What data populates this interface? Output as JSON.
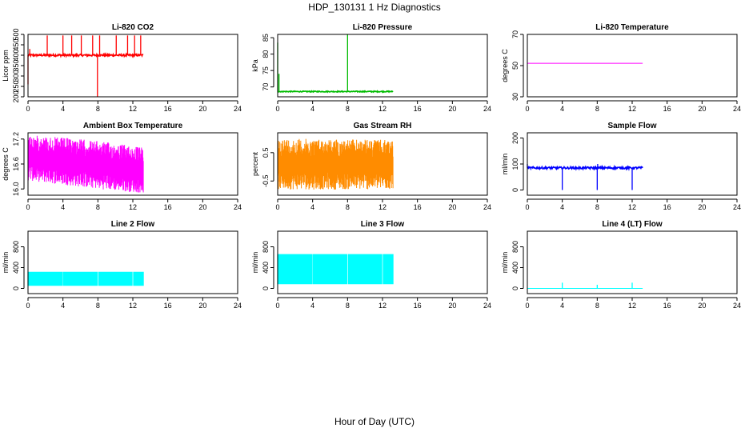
{
  "figure": {
    "title": "HDP_130131  1 Hz Diagnostics",
    "xlabel": "Hour of Day (UTC)"
  },
  "chart_data": [
    {
      "type": "line",
      "title": "Li-820 CO2",
      "ylabel": "Licor ppm",
      "color": "#ff0000",
      "xlim": [
        0,
        24
      ],
      "xticks": [
        0,
        4,
        8,
        12,
        16,
        20,
        24
      ],
      "ylim": [
        200,
        500
      ],
      "yticks": [
        200,
        250,
        300,
        350,
        400,
        450,
        500
      ],
      "pattern": "line_spikes",
      "x_end": 13.2,
      "baseline": 400,
      "noise": 5,
      "spikes": [
        {
          "x": 0.0,
          "y": 260
        },
        {
          "x": 0.2,
          "y": 430
        },
        {
          "x": 2.2,
          "y": 495
        },
        {
          "x": 4.0,
          "y": 495
        },
        {
          "x": 5.0,
          "y": 495
        },
        {
          "x": 6.1,
          "y": 495
        },
        {
          "x": 7.4,
          "y": 495
        },
        {
          "x": 7.95,
          "y": 200
        },
        {
          "x": 8.2,
          "y": 495
        },
        {
          "x": 10.1,
          "y": 495
        },
        {
          "x": 11.4,
          "y": 495
        },
        {
          "x": 12.2,
          "y": 495
        },
        {
          "x": 12.9,
          "y": 495
        }
      ]
    },
    {
      "type": "line",
      "title": "Li-820 Pressure",
      "ylabel": "kPa",
      "color": "#00bb00",
      "xlim": [
        0,
        24
      ],
      "xticks": [
        0,
        4,
        8,
        12,
        16,
        20,
        24
      ],
      "ylim": [
        67,
        86
      ],
      "yticks": [
        70,
        75,
        80,
        85
      ],
      "pattern": "line_spikes",
      "x_end": 13.2,
      "baseline": 68.6,
      "noise": 0.15,
      "spikes": [
        {
          "x": 0.0,
          "y": 83.5
        },
        {
          "x": 0.15,
          "y": 74
        },
        {
          "x": 8.0,
          "y": 86
        }
      ]
    },
    {
      "type": "line",
      "title": "Li-820 Temperature",
      "ylabel": "degrees C",
      "color": "#ff00ff",
      "xlim": [
        0,
        24
      ],
      "xticks": [
        0,
        4,
        8,
        12,
        16,
        20,
        24
      ],
      "ylim": [
        30,
        70
      ],
      "yticks": [
        30,
        50,
        70
      ],
      "pattern": "flat",
      "x_end": 13.2,
      "baseline": 51.5
    },
    {
      "type": "line",
      "title": "Ambient Box Temperature",
      "ylabel": "degrees C",
      "color": "#ff00ff",
      "xlim": [
        0,
        24
      ],
      "xticks": [
        0,
        4,
        8,
        12,
        16,
        20,
        24
      ],
      "ylim": [
        15.85,
        17.35
      ],
      "yticks": [
        16.0,
        16.6,
        17.2
      ],
      "yticklabels": [
        "16.0",
        "16.6",
        "17.2"
      ],
      "pattern": "band",
      "x_end": 13.2,
      "band_top": [
        [
          0,
          17.3
        ],
        [
          6,
          17.2
        ],
        [
          10,
          17.1
        ],
        [
          13,
          17.0
        ],
        [
          13.2,
          17.0
        ]
      ],
      "band_bottom": [
        [
          0,
          16.2
        ],
        [
          4,
          16.1
        ],
        [
          8,
          16.0
        ],
        [
          13.2,
          15.9
        ]
      ]
    },
    {
      "type": "line",
      "title": "Gas Stream RH",
      "ylabel": "percent",
      "color": "#ff8c00",
      "xlim": [
        0,
        24
      ],
      "xticks": [
        0,
        4,
        8,
        12,
        16,
        20,
        24
      ],
      "ylim": [
        -1.0,
        1.2
      ],
      "yticks": [
        -0.5,
        0.5
      ],
      "yticklabels": [
        "-0.5",
        "0.5"
      ],
      "pattern": "band",
      "x_end": 13.2,
      "band_top": [
        [
          0,
          1.0
        ],
        [
          13.2,
          0.95
        ]
      ],
      "band_bottom": [
        [
          0,
          -0.8
        ],
        [
          13.2,
          -0.8
        ]
      ]
    },
    {
      "type": "line",
      "title": "Sample Flow",
      "ylabel": "ml/min",
      "color": "#0000ff",
      "xlim": [
        0,
        24
      ],
      "xticks": [
        0,
        4,
        8,
        12,
        16,
        20,
        24
      ],
      "ylim": [
        -20,
        220
      ],
      "yticks": [
        0,
        100,
        200
      ],
      "pattern": "line_spikes",
      "x_end": 13.2,
      "baseline": 85,
      "noise": 4,
      "spikes": [
        {
          "x": 0.0,
          "y": 100
        },
        {
          "x": 4.0,
          "y": 0
        },
        {
          "x": 8.0,
          "y": 0
        },
        {
          "x": 8.05,
          "y": 100
        },
        {
          "x": 12.0,
          "y": 0
        }
      ]
    },
    {
      "type": "line",
      "title": "Line 2 Flow",
      "ylabel": "ml/min",
      "color": "#00ffff",
      "xlim": [
        0,
        24
      ],
      "xticks": [
        0,
        4,
        8,
        12,
        16,
        20,
        24
      ],
      "ylim": [
        -100,
        1100
      ],
      "yticks": [
        0,
        400,
        800
      ],
      "pattern": "band_gaps",
      "x_end": 13.2,
      "band_top": [
        [
          0,
          320
        ],
        [
          13.2,
          320
        ]
      ],
      "band_bottom": [
        [
          0,
          50
        ],
        [
          13.2,
          50
        ]
      ],
      "gaps": [
        4,
        8,
        12
      ]
    },
    {
      "type": "line",
      "title": "Line 3 Flow",
      "ylabel": "ml/min",
      "color": "#00ffff",
      "xlim": [
        0,
        24
      ],
      "xticks": [
        0,
        4,
        8,
        12,
        16,
        20,
        24
      ],
      "ylim": [
        -100,
        1100
      ],
      "yticks": [
        0,
        400,
        800
      ],
      "pattern": "band_gaps",
      "x_end": 13.2,
      "band_top": [
        [
          0,
          660
        ],
        [
          13.2,
          660
        ]
      ],
      "band_bottom": [
        [
          0,
          80
        ],
        [
          13.2,
          80
        ]
      ],
      "gaps": [
        4,
        8,
        12
      ]
    },
    {
      "type": "line",
      "title": "Line 4 (LT) Flow",
      "ylabel": "ml/min",
      "color": "#00ffff",
      "xlim": [
        0,
        24
      ],
      "xticks": [
        0,
        4,
        8,
        12,
        16,
        20,
        24
      ],
      "ylim": [
        -100,
        1100
      ],
      "yticks": [
        0,
        400,
        800
      ],
      "pattern": "line_spikes",
      "x_end": 13.2,
      "baseline": 0,
      "noise": 0,
      "spikes": [
        {
          "x": 4.0,
          "y": 110
        },
        {
          "x": 8.0,
          "y": 70
        },
        {
          "x": 12.0,
          "y": 110
        }
      ]
    }
  ]
}
